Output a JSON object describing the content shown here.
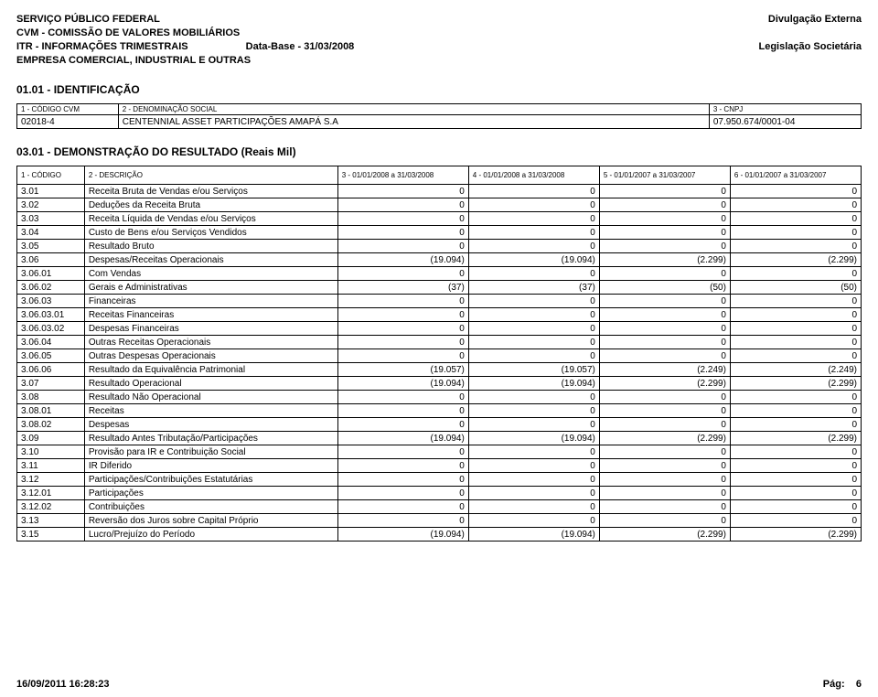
{
  "header": {
    "line1": "SERVIÇO PÚBLICO FEDERAL",
    "line2": "CVM - COMISSÃO DE VALORES MOBILIÁRIOS",
    "line3a": "ITR - INFORMAÇÕES TRIMESTRAIS",
    "line3b": "Data-Base - 31/03/2008",
    "line4": "EMPRESA COMERCIAL, INDUSTRIAL E OUTRAS",
    "right1": "Divulgação Externa",
    "right2": "Legislação Societária"
  },
  "section_ident_title": "01.01 - IDENTIFICAÇÃO",
  "ident": {
    "h1": "1 - CÓDIGO CVM",
    "h2": "2 - DENOMINAÇÃO SOCIAL",
    "h3": "3 - CNPJ",
    "v1": "02018-4",
    "v2": "CENTENNIAL ASSET PARTICIPAÇÕES AMAPÁ S.A",
    "v3": "07.950.674/0001-04"
  },
  "section_fin_title": "03.01 - DEMONSTRAÇÃO DO RESULTADO (Reais Mil)",
  "fin_headers": {
    "c1": "1 - CÓDIGO",
    "c2": "2 - DESCRIÇÃO",
    "c3": "3 - 01/01/2008 a 31/03/2008",
    "c4": "4 - 01/01/2008 a 31/03/2008",
    "c5": "5 - 01/01/2007 a 31/03/2007",
    "c6": "6 - 01/01/2007 a 31/03/2007"
  },
  "fin_rows": [
    {
      "code": "3.01",
      "desc": "Receita Bruta de Vendas e/ou Serviços",
      "v": [
        "0",
        "0",
        "0",
        "0"
      ]
    },
    {
      "code": "3.02",
      "desc": "Deduções da Receita Bruta",
      "v": [
        "0",
        "0",
        "0",
        "0"
      ]
    },
    {
      "code": "3.03",
      "desc": "Receita Líquida de Vendas e/ou Serviços",
      "v": [
        "0",
        "0",
        "0",
        "0"
      ]
    },
    {
      "code": "3.04",
      "desc": "Custo de Bens e/ou Serviços Vendidos",
      "v": [
        "0",
        "0",
        "0",
        "0"
      ]
    },
    {
      "code": "3.05",
      "desc": "Resultado Bruto",
      "v": [
        "0",
        "0",
        "0",
        "0"
      ]
    },
    {
      "code": "3.06",
      "desc": "Despesas/Receitas Operacionais",
      "v": [
        "(19.094)",
        "(19.094)",
        "(2.299)",
        "(2.299)"
      ]
    },
    {
      "code": "3.06.01",
      "desc": "Com Vendas",
      "v": [
        "0",
        "0",
        "0",
        "0"
      ]
    },
    {
      "code": "3.06.02",
      "desc": "Gerais e Administrativas",
      "v": [
        "(37)",
        "(37)",
        "(50)",
        "(50)"
      ]
    },
    {
      "code": "3.06.03",
      "desc": "Financeiras",
      "v": [
        "0",
        "0",
        "0",
        "0"
      ]
    },
    {
      "code": "3.06.03.01",
      "desc": "Receitas Financeiras",
      "v": [
        "0",
        "0",
        "0",
        "0"
      ]
    },
    {
      "code": "3.06.03.02",
      "desc": "Despesas Financeiras",
      "v": [
        "0",
        "0",
        "0",
        "0"
      ]
    },
    {
      "code": "3.06.04",
      "desc": "Outras Receitas Operacionais",
      "v": [
        "0",
        "0",
        "0",
        "0"
      ]
    },
    {
      "code": "3.06.05",
      "desc": "Outras Despesas Operacionais",
      "v": [
        "0",
        "0",
        "0",
        "0"
      ]
    },
    {
      "code": "3.06.06",
      "desc": "Resultado da Equivalência Patrimonial",
      "v": [
        "(19.057)",
        "(19.057)",
        "(2.249)",
        "(2.249)"
      ]
    },
    {
      "code": "3.07",
      "desc": "Resultado Operacional",
      "v": [
        "(19.094)",
        "(19.094)",
        "(2.299)",
        "(2.299)"
      ]
    },
    {
      "code": "3.08",
      "desc": "Resultado Não Operacional",
      "v": [
        "0",
        "0",
        "0",
        "0"
      ]
    },
    {
      "code": "3.08.01",
      "desc": "Receitas",
      "v": [
        "0",
        "0",
        "0",
        "0"
      ]
    },
    {
      "code": "3.08.02",
      "desc": "Despesas",
      "v": [
        "0",
        "0",
        "0",
        "0"
      ]
    },
    {
      "code": "3.09",
      "desc": "Resultado Antes Tributação/Participações",
      "v": [
        "(19.094)",
        "(19.094)",
        "(2.299)",
        "(2.299)"
      ]
    },
    {
      "code": "3.10",
      "desc": "Provisão para IR e Contribuição Social",
      "v": [
        "0",
        "0",
        "0",
        "0"
      ]
    },
    {
      "code": "3.11",
      "desc": "IR Diferido",
      "v": [
        "0",
        "0",
        "0",
        "0"
      ]
    },
    {
      "code": "3.12",
      "desc": "Participações/Contribuições Estatutárias",
      "v": [
        "0",
        "0",
        "0",
        "0"
      ]
    },
    {
      "code": "3.12.01",
      "desc": "Participações",
      "v": [
        "0",
        "0",
        "0",
        "0"
      ]
    },
    {
      "code": "3.12.02",
      "desc": "Contribuições",
      "v": [
        "0",
        "0",
        "0",
        "0"
      ]
    },
    {
      "code": "3.13",
      "desc": "Reversão dos Juros sobre Capital Próprio",
      "v": [
        "0",
        "0",
        "0",
        "0"
      ]
    },
    {
      "code": "3.15",
      "desc": "Lucro/Prejuízo do Período",
      "v": [
        "(19.094)",
        "(19.094)",
        "(2.299)",
        "(2.299)"
      ]
    }
  ],
  "footer": {
    "timestamp": "16/09/2011 16:28:23",
    "page_label": "Pág:",
    "page_num": "6"
  },
  "layout": {
    "col_widths_pct": [
      8,
      30,
      15.5,
      15.5,
      15.5,
      15.5
    ],
    "ident_col_widths_pct": [
      12,
      70,
      18
    ]
  }
}
